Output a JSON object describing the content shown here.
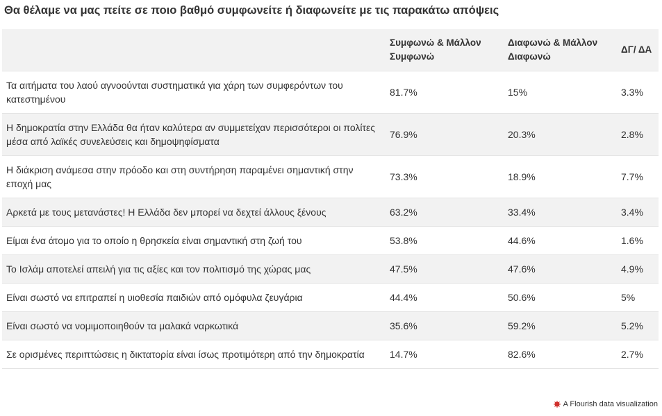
{
  "title": "Θα θέλαμε να μας πείτε σε ποιο βαθμό συμφωνείτε ή διαφωνείτε με τις παρακάτω απόψεις",
  "table": {
    "header": [
      "",
      "Συμφωνώ & Μάλλον Συμφωνώ",
      "Διαφωνώ & Μάλλον Διαφωνώ",
      "ΔΓ/ ΔΑ"
    ],
    "rows": [
      [
        "Τα αιτήματα του λαού αγνοούνται συστηματικά για χάρη των συμφερόντων του κατεστημένου",
        "81.7%",
        "15%",
        "3.3%"
      ],
      [
        "Η δημοκρατία στην Ελλάδα θα ήταν καλύτερα αν συμμετείχαν περισσότεροι οι πολίτες μέσα από λαϊκές συνελεύσεις και δημοψηφίσματα",
        "76.9%",
        "20.3%",
        "2.8%"
      ],
      [
        "Η διάκριση ανάμεσα στην πρόοδο και στη συντήρηση παραμένει σημαντική στην εποχή μας",
        "73.3%",
        "18.9%",
        "7.7%"
      ],
      [
        "Αρκετά με τους μετανάστες! Η Ελλάδα δεν μπορεί να δεχτεί άλλους ξένους",
        "63.2%",
        "33.4%",
        "3.4%"
      ],
      [
        "Είμαι ένα άτομο για το οποίο η θρησκεία είναι σημαντική στη ζωή του",
        "53.8%",
        "44.6%",
        "1.6%"
      ],
      [
        "Το Ισλάμ αποτελεί απειλή για τις αξίες και τον πολιτισμό της χώρας μας",
        "47.5%",
        "47.6%",
        "4.9%"
      ],
      [
        "Είναι σωστό να επιτραπεί η υιοθεσία παιδιών από ομόφυλα ζευγάρια",
        "44.4%",
        "50.6%",
        "5%"
      ],
      [
        "Είναι σωστό να νομιμοποιηθούν τα μαλακά ναρκωτικά",
        "35.6%",
        "59.2%",
        "5.2%"
      ],
      [
        "Σε ορισμένες περιπτώσεις η δικτατορία είναι ίσως προτιμότερη από την δημοκρατία",
        "14.7%",
        "82.6%",
        "2.7%"
      ]
    ]
  },
  "footer": "A Flourish data visualization"
}
